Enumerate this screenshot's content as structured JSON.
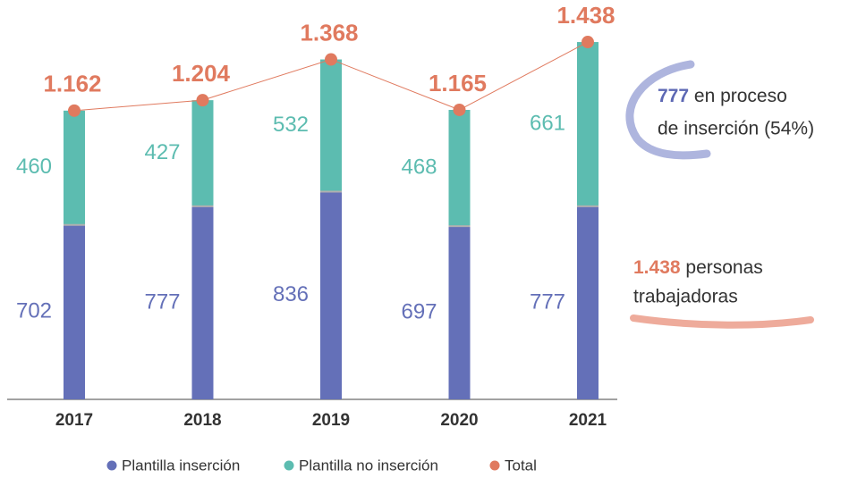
{
  "chart_data": {
    "type": "stacked-bar-line",
    "categories": [
      "2017",
      "2018",
      "2019",
      "2020",
      "2021"
    ],
    "series": [
      {
        "name": "Plantilla inserción",
        "color": "#6470b8",
        "values": [
          702,
          777,
          836,
          697,
          777
        ]
      },
      {
        "name": "Plantilla no inserción",
        "color": "#5cbcb0",
        "values": [
          460,
          427,
          532,
          468,
          661
        ]
      },
      {
        "name": "Total",
        "color": "#e07a5f",
        "values": [
          1162,
          1204,
          1368,
          1165,
          1438
        ],
        "value_labels": [
          "1.162",
          "1.204",
          "1.368",
          "1.165",
          "1.438"
        ]
      }
    ],
    "ylim": [
      0,
      1600
    ],
    "annotations": [
      {
        "emphasis": "777",
        "rest": "en proceso",
        "line2": "de inserción (54%)"
      },
      {
        "emphasis": "1.438",
        "rest": "personas",
        "line2": "trabajadoras"
      }
    ]
  }
}
